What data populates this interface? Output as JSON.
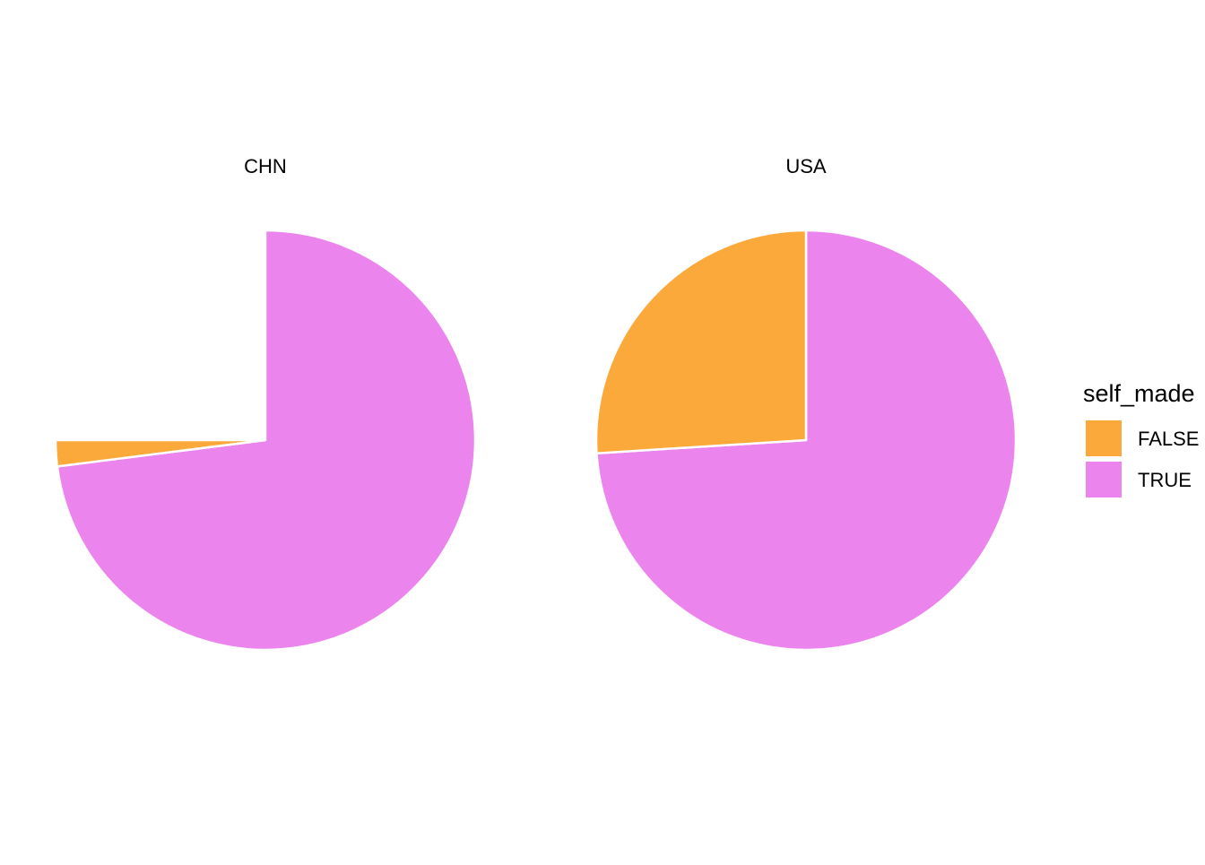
{
  "chart_data": {
    "type": "pie",
    "facets": [
      {
        "label": "CHN",
        "slices": [
          {
            "category": "FALSE",
            "value": 0.02
          },
          {
            "category": "TRUE",
            "value": 0.73
          }
        ]
      },
      {
        "label": "USA",
        "slices": [
          {
            "category": "FALSE",
            "value": 0.26
          },
          {
            "category": "TRUE",
            "value": 0.74
          }
        ]
      }
    ],
    "legend": {
      "title": "self_made",
      "items": [
        {
          "label": "FALSE",
          "color": "#FBA93B"
        },
        {
          "label": "TRUE",
          "color": "#EB84EC"
        }
      ],
      "position": "right"
    },
    "start": "top",
    "direction": "clockwise"
  }
}
